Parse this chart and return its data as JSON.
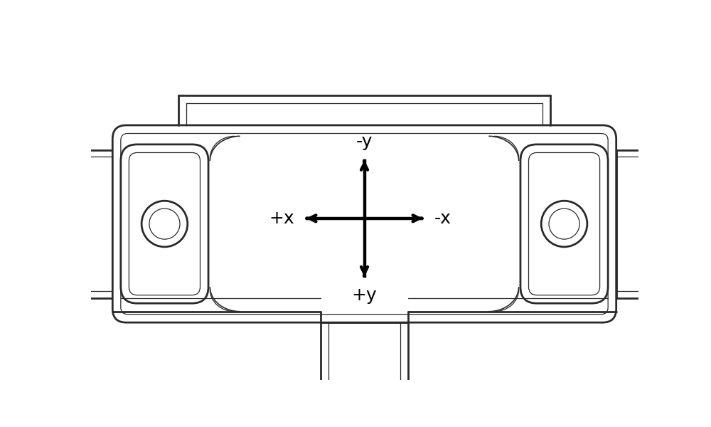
{
  "bg_color": "#ffffff",
  "line_color": "#2a2a2a",
  "lw_outer": 2.0,
  "lw_inner": 1.2,
  "lw_thin": 0.9,
  "arrow_color": "#000000",
  "arrow_lw": 3.2,
  "arrow_ms": 16,
  "labels": {
    "neg_y": "-y",
    "pos_y": "+y",
    "pos_x": "+x",
    "neg_x": "-x"
  },
  "label_fontsize": 18,
  "figsize": [
    10.0,
    6.0
  ],
  "dpi": 100,
  "xlim": [
    0,
    100
  ],
  "ylim": [
    0,
    60
  ]
}
